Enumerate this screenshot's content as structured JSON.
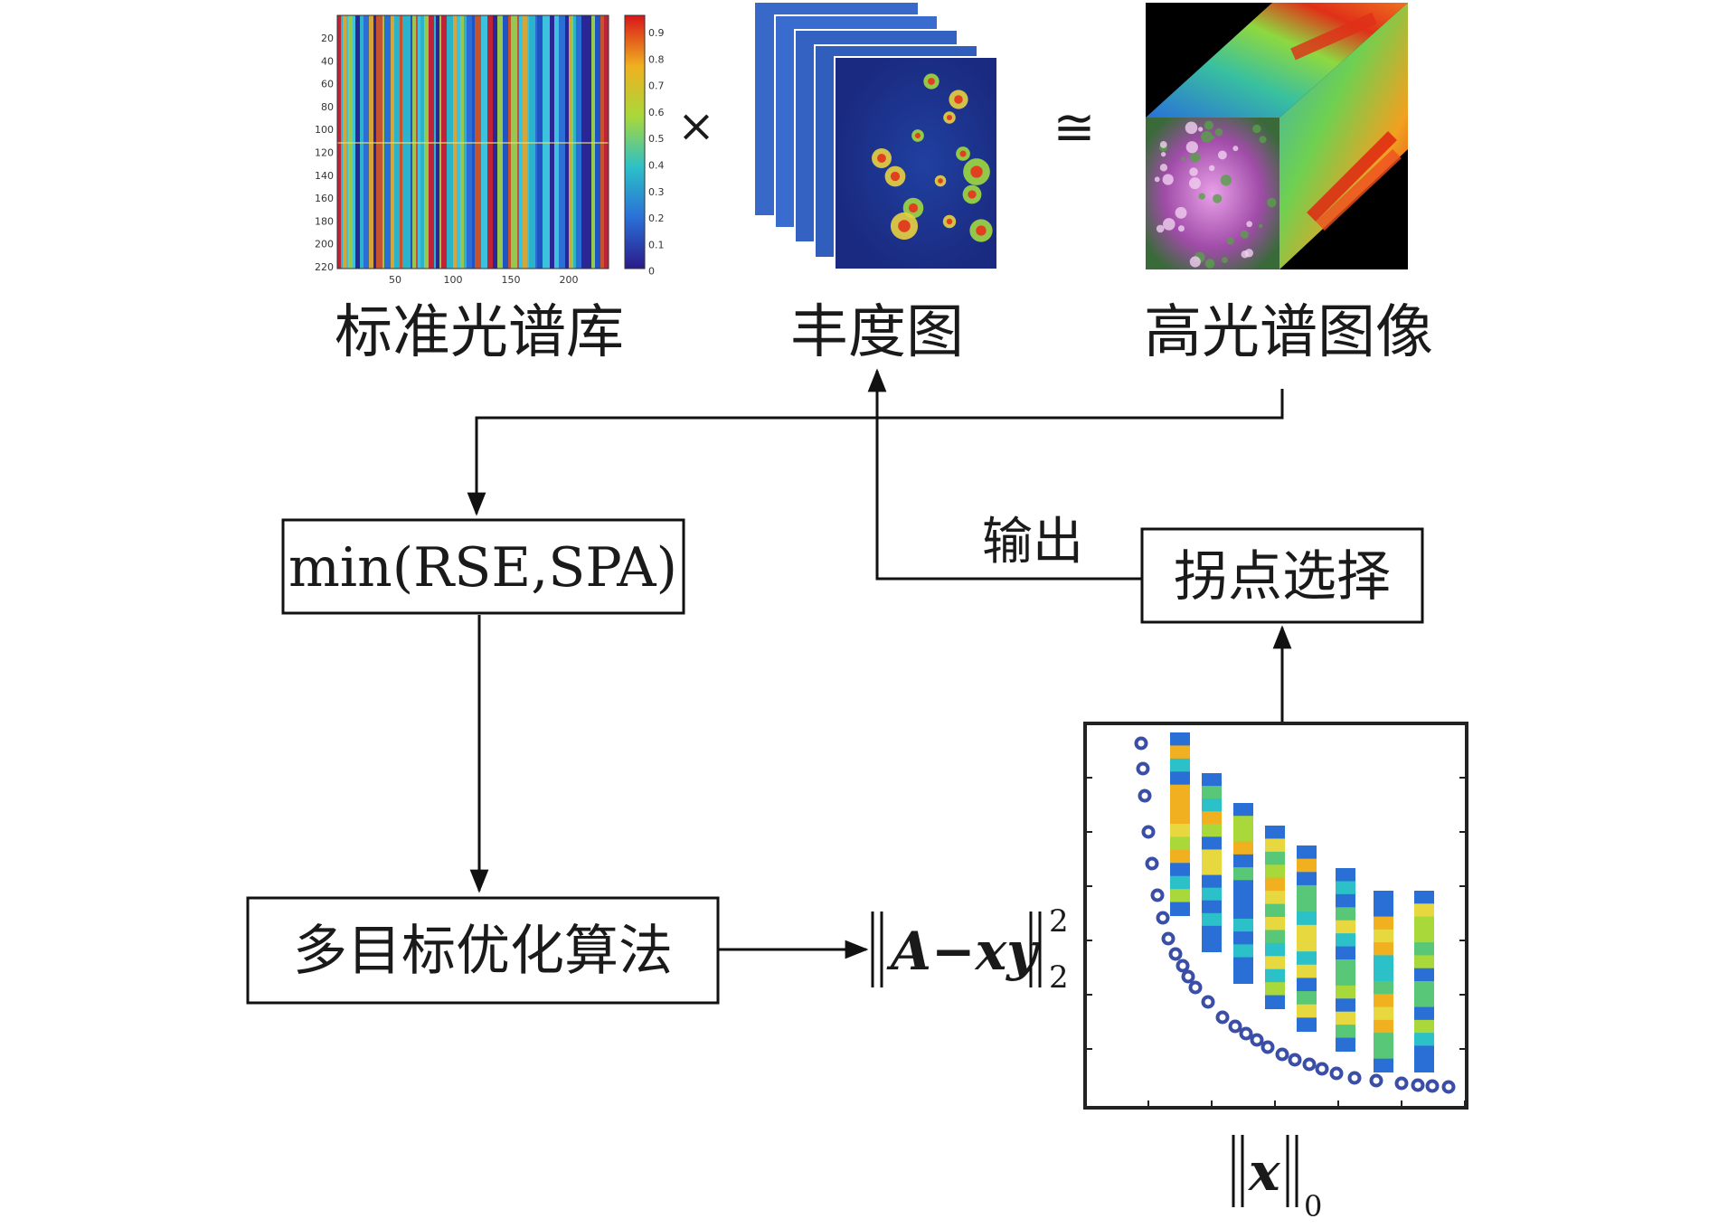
{
  "captions": {
    "spectral_library": "标准光谱库",
    "abundance_map": "丰度图",
    "hyperspectral_image": "高光谱图像"
  },
  "operators": {
    "multiply": "×",
    "approx": "≅"
  },
  "boxes": {
    "objective": "min(RSE,SPA)",
    "algorithm": "多目标优化算法",
    "knee_point": "拐点选择"
  },
  "edge_labels": {
    "output": "输出"
  },
  "formulas": {
    "residual_main": "A−xy",
    "residual_sup": "2",
    "residual_sub": "2",
    "sparsity_main": "x",
    "sparsity_sub": "0"
  },
  "heatmap_axes": {
    "y_ticks": [
      "20",
      "40",
      "60",
      "80",
      "100",
      "120",
      "140",
      "160",
      "180",
      "200",
      "220"
    ],
    "x_ticks": [
      "50",
      "100",
      "150",
      "200"
    ],
    "colorbar_ticks": [
      "0.9",
      "0.8",
      "0.7",
      "0.6",
      "0.5",
      "0.4",
      "0.3",
      "0.2",
      "0.1",
      "0"
    ]
  },
  "colors": {
    "pareto_point": "#3a4ea8",
    "line": "#111111"
  }
}
